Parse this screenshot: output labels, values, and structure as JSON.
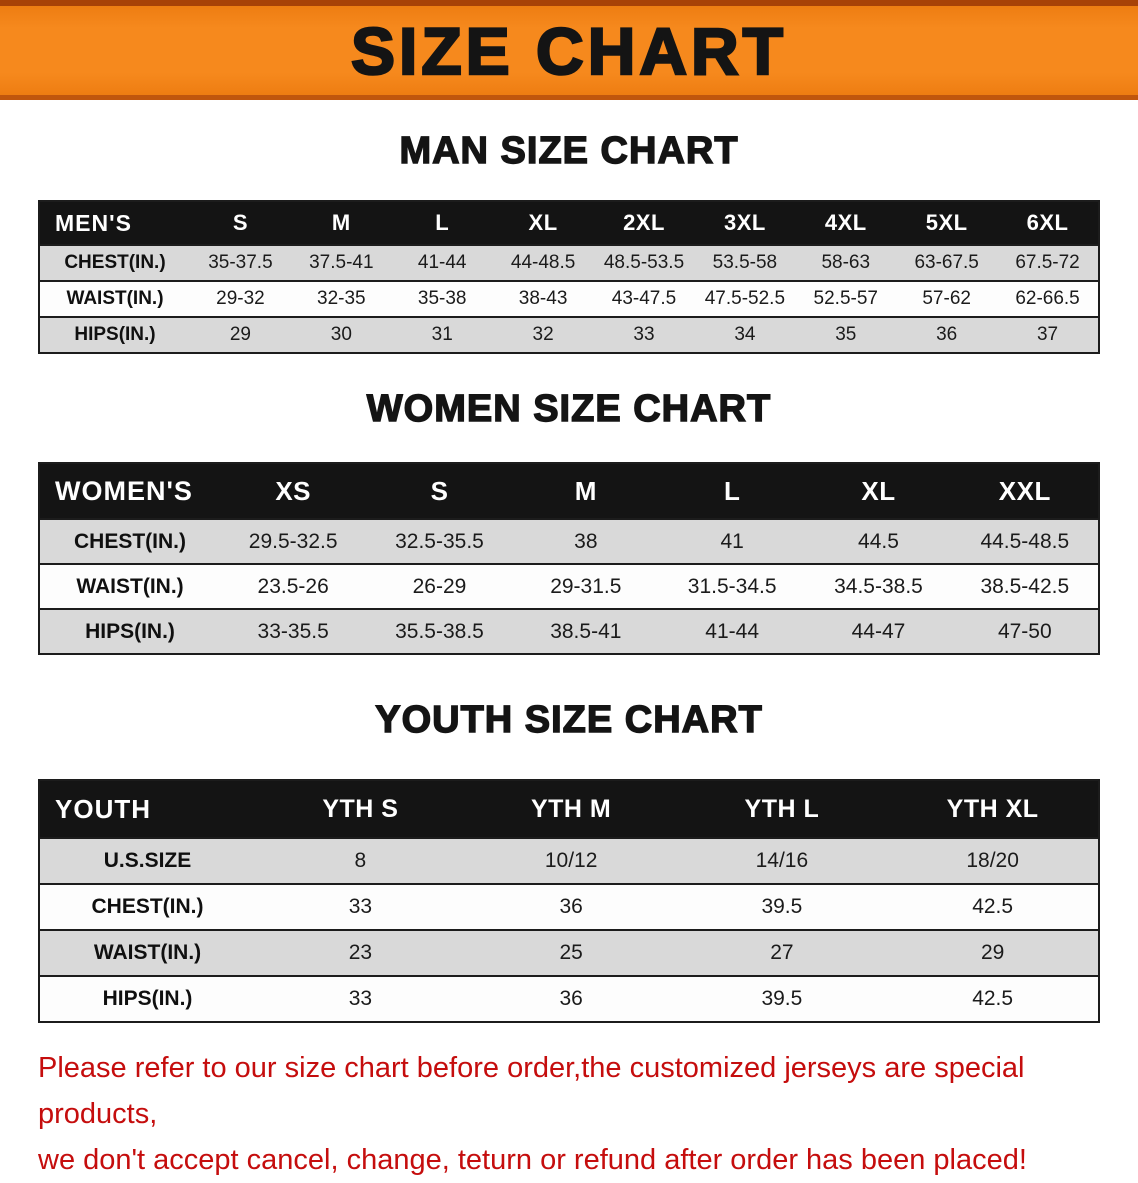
{
  "banner": {
    "title": "SIZE CHART"
  },
  "men": {
    "heading": "MAN SIZE CHART",
    "table": {
      "label": "MEN'S",
      "columns": [
        "S",
        "M",
        "L",
        "XL",
        "2XL",
        "3XL",
        "4XL",
        "5XL",
        "6XL"
      ],
      "rows": [
        {
          "label": "CHEST(IN.)",
          "values": [
            "35-37.5",
            "37.5-41",
            "41-44",
            "44-48.5",
            "48.5-53.5",
            "53.5-58",
            "58-63",
            "63-67.5",
            "67.5-72"
          ]
        },
        {
          "label": "WAIST(IN.)",
          "values": [
            "29-32",
            "32-35",
            "35-38",
            "38-43",
            "43-47.5",
            "47.5-52.5",
            "52.5-57",
            "57-62",
            "62-66.5"
          ]
        },
        {
          "label": "HIPS(IN.)",
          "values": [
            "29",
            "30",
            "31",
            "32",
            "33",
            "34",
            "35",
            "36",
            "37"
          ]
        }
      ]
    }
  },
  "women": {
    "heading": "WOMEN SIZE CHART",
    "table": {
      "label": "WOMEN'S",
      "columns": [
        "XS",
        "S",
        "M",
        "L",
        "XL",
        "XXL"
      ],
      "rows": [
        {
          "label": "CHEST(IN.)",
          "values": [
            "29.5-32.5",
            "32.5-35.5",
            "38",
            "41",
            "44.5",
            "44.5-48.5"
          ]
        },
        {
          "label": "WAIST(IN.)",
          "values": [
            "23.5-26",
            "26-29",
            "29-31.5",
            "31.5-34.5",
            "34.5-38.5",
            "38.5-42.5"
          ]
        },
        {
          "label": "HIPS(IN.)",
          "values": [
            "33-35.5",
            "35.5-38.5",
            "38.5-41",
            "41-44",
            "44-47",
            "47-50"
          ]
        }
      ]
    }
  },
  "youth": {
    "heading": "YOUTH SIZE CHART",
    "table": {
      "label": "YOUTH",
      "columns": [
        "YTH S",
        "YTH M",
        "YTH L",
        "YTH XL"
      ],
      "rows": [
        {
          "label": "U.S.SIZE",
          "values": [
            "8",
            "10/12",
            "14/16",
            "18/20"
          ]
        },
        {
          "label": "CHEST(IN.)",
          "values": [
            "33",
            "36",
            "39.5",
            "42.5"
          ]
        },
        {
          "label": "WAIST(IN.)",
          "values": [
            "23",
            "25",
            "27",
            "29"
          ]
        },
        {
          "label": "HIPS(IN.)",
          "values": [
            "33",
            "36",
            "39.5",
            "42.5"
          ]
        }
      ]
    }
  },
  "footer": {
    "line1": "Please refer to our size chart before order,the customized jerseys are special products,",
    "line2": "we don't accept cancel, change, teturn or refund after order has been placed!"
  },
  "colors": {
    "banner_orange": "#f6891d",
    "banner_orange_dark": "#ee7d12",
    "banner_edge_top": "#a84207",
    "banner_edge_bottom": "#c0560d",
    "header_black": "#141414",
    "row_gray": "#d9d9d9",
    "footer_red": "#c50d0d"
  }
}
